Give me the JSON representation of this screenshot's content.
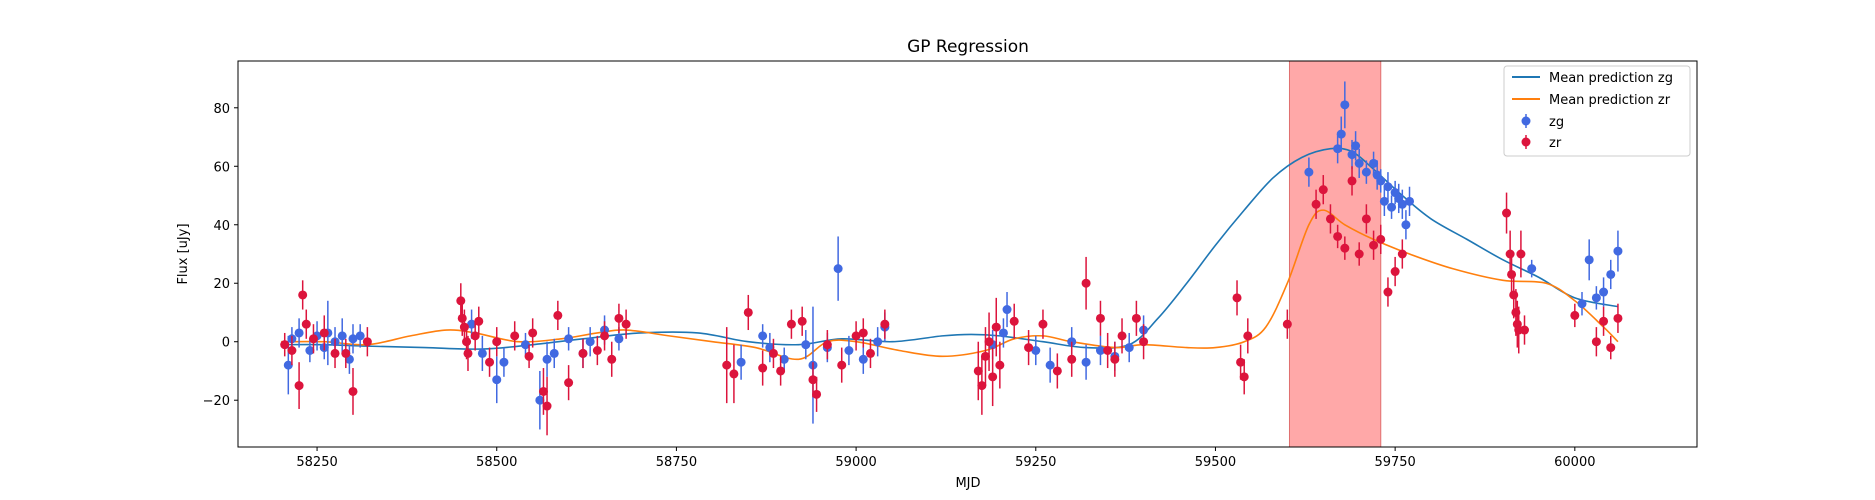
{
  "chart_data": {
    "type": "scatter",
    "title": "GP Regression",
    "xlabel": "MJD",
    "ylabel": "Flux [uJy]",
    "xlim": [
      58140,
      60170
    ],
    "ylim": [
      -36,
      96
    ],
    "xticks": [
      58250,
      58500,
      58750,
      59000,
      59250,
      59500,
      59750,
      60000
    ],
    "yticks": [
      -20,
      0,
      20,
      40,
      60,
      80
    ],
    "grid": false,
    "legend_position": "top-right",
    "shaded_region": {
      "x": [
        59603,
        59730
      ],
      "color": "#ff9999"
    },
    "colors": {
      "zg_line": "#1f77b4",
      "zr_line": "#ff7f0e",
      "zg_points": "#4169e1",
      "zr_points": "#dc143c"
    },
    "lines": [
      {
        "name": "Mean prediction zg",
        "x": [
          58200,
          58260,
          58320,
          58400,
          58480,
          58550,
          58620,
          58700,
          58780,
          58850,
          58920,
          58980,
          59050,
          59120,
          59160,
          59200,
          59260,
          59320,
          59380,
          59420,
          59460,
          59500,
          59540,
          59580,
          59620,
          59660,
          59690,
          59720,
          59760,
          59800,
          59850,
          59900,
          59950,
          60000,
          60060
        ],
        "y": [
          -1,
          -1,
          -1.5,
          -2,
          -2.5,
          -1,
          1,
          3,
          3,
          0,
          -1,
          1,
          0,
          2,
          2.5,
          2,
          0,
          -2,
          -1,
          8,
          20,
          33,
          45,
          56,
          63,
          66,
          65,
          59,
          50,
          42,
          35,
          28,
          22,
          15,
          12
        ]
      },
      {
        "name": "Mean prediction zr",
        "x": [
          58200,
          58260,
          58320,
          58380,
          58430,
          58470,
          58530,
          58590,
          58640,
          58680,
          58740,
          58800,
          58860,
          58920,
          58960,
          59000,
          59060,
          59120,
          59180,
          59220,
          59260,
          59300,
          59360,
          59400,
          59460,
          59500,
          59540,
          59570,
          59600,
          59630,
          59650,
          59680,
          59720,
          59770,
          59830,
          59900,
          59960,
          60000,
          60040,
          60060
        ],
        "y": [
          0,
          0,
          -1,
          2,
          4,
          3,
          0,
          1,
          3,
          4,
          2,
          0,
          -2,
          -6,
          0,
          0,
          -3,
          -5,
          -3,
          1,
          2,
          0,
          -2,
          -1,
          -2,
          -2,
          0,
          5,
          20,
          40,
          45,
          40,
          35,
          30,
          25,
          21,
          20,
          14,
          5,
          0
        ]
      }
    ],
    "series": [
      {
        "name": "zg",
        "points": [
          [
            58210,
            -8,
            10
          ],
          [
            58215,
            1,
            4
          ],
          [
            58225,
            3,
            5
          ],
          [
            58240,
            -3,
            4
          ],
          [
            58250,
            2,
            5
          ],
          [
            58260,
            -2,
            4
          ],
          [
            58265,
            3,
            11
          ],
          [
            58275,
            0,
            5
          ],
          [
            58285,
            2,
            6
          ],
          [
            58295,
            -6,
            5
          ],
          [
            58300,
            1,
            5
          ],
          [
            58310,
            2,
            4
          ],
          [
            58465,
            6,
            5
          ],
          [
            58480,
            -4,
            6
          ],
          [
            58500,
            -13,
            8
          ],
          [
            58510,
            -7,
            5
          ],
          [
            58540,
            -1,
            4
          ],
          [
            58560,
            -20,
            10
          ],
          [
            58570,
            -6,
            6
          ],
          [
            58580,
            -4,
            5
          ],
          [
            58600,
            1,
            4
          ],
          [
            58620,
            -4,
            5
          ],
          [
            58630,
            0,
            5
          ],
          [
            58650,
            4,
            5
          ],
          [
            58670,
            1,
            4
          ],
          [
            58840,
            -7,
            6
          ],
          [
            58870,
            2,
            4
          ],
          [
            58880,
            -2,
            5
          ],
          [
            58900,
            -6,
            4
          ],
          [
            58930,
            -1,
            5
          ],
          [
            58940,
            -8,
            20
          ],
          [
            58960,
            -2,
            5
          ],
          [
            58975,
            25,
            11
          ],
          [
            58990,
            -3,
            5
          ],
          [
            59010,
            -6,
            5
          ],
          [
            59030,
            0,
            5
          ],
          [
            59040,
            5,
            5
          ],
          [
            59190,
            -1,
            5
          ],
          [
            59205,
            3,
            5
          ],
          [
            59210,
            11,
            6
          ],
          [
            59250,
            -3,
            5
          ],
          [
            59270,
            -8,
            6
          ],
          [
            59300,
            0,
            5
          ],
          [
            59320,
            -7,
            6
          ],
          [
            59340,
            -3,
            5
          ],
          [
            59360,
            -5,
            5
          ],
          [
            59380,
            -2,
            5
          ],
          [
            59400,
            4,
            5
          ],
          [
            59630,
            58,
            5
          ],
          [
            59670,
            66,
            5
          ],
          [
            59675,
            71,
            6
          ],
          [
            59680,
            81,
            8
          ],
          [
            59690,
            64,
            5
          ],
          [
            59695,
            67,
            5
          ],
          [
            59700,
            61,
            5
          ],
          [
            59710,
            58,
            4
          ],
          [
            59720,
            61,
            4
          ],
          [
            59725,
            57,
            5
          ],
          [
            59730,
            55,
            4
          ],
          [
            59735,
            48,
            5
          ],
          [
            59740,
            53,
            5
          ],
          [
            59745,
            46,
            4
          ],
          [
            59750,
            51,
            4
          ],
          [
            59755,
            49,
            5
          ],
          [
            59760,
            47,
            5
          ],
          [
            59765,
            40,
            5
          ],
          [
            59770,
            48,
            5
          ],
          [
            59940,
            25,
            3
          ],
          [
            60010,
            13,
            4
          ],
          [
            60020,
            28,
            7
          ],
          [
            60030,
            15,
            4
          ],
          [
            60040,
            17,
            5
          ],
          [
            60050,
            23,
            5
          ],
          [
            60060,
            31,
            7
          ]
        ]
      },
      {
        "name": "zr",
        "points": [
          [
            58205,
            -1,
            4
          ],
          [
            58215,
            -3,
            5
          ],
          [
            58225,
            -15,
            8
          ],
          [
            58230,
            16,
            5
          ],
          [
            58235,
            6,
            5
          ],
          [
            58245,
            1,
            5
          ],
          [
            58260,
            3,
            6
          ],
          [
            58275,
            -4,
            5
          ],
          [
            58290,
            -4,
            5
          ],
          [
            58300,
            -17,
            8
          ],
          [
            58320,
            0,
            5
          ],
          [
            58450,
            14,
            6
          ],
          [
            58452,
            8,
            6
          ],
          [
            58455,
            5,
            6
          ],
          [
            58458,
            0,
            6
          ],
          [
            58460,
            -4,
            6
          ],
          [
            58470,
            2,
            5
          ],
          [
            58475,
            7,
            5
          ],
          [
            58490,
            -7,
            5
          ],
          [
            58500,
            0,
            5
          ],
          [
            58525,
            2,
            5
          ],
          [
            58545,
            -5,
            4
          ],
          [
            58550,
            3,
            5
          ],
          [
            58565,
            -17,
            8
          ],
          [
            58570,
            -22,
            10
          ],
          [
            58585,
            9,
            5
          ],
          [
            58600,
            -14,
            6
          ],
          [
            58620,
            -4,
            5
          ],
          [
            58640,
            -3,
            5
          ],
          [
            58650,
            2,
            5
          ],
          [
            58660,
            -6,
            6
          ],
          [
            58670,
            8,
            5
          ],
          [
            58680,
            6,
            5
          ],
          [
            58820,
            -8,
            13
          ],
          [
            58830,
            -11,
            10
          ],
          [
            58850,
            10,
            6
          ],
          [
            58870,
            -9,
            6
          ],
          [
            58885,
            -4,
            5
          ],
          [
            58895,
            -10,
            5
          ],
          [
            58910,
            6,
            5
          ],
          [
            58925,
            7,
            5
          ],
          [
            58940,
            -13,
            6
          ],
          [
            58945,
            -18,
            6
          ],
          [
            58960,
            -1,
            5
          ],
          [
            58980,
            -8,
            6
          ],
          [
            59000,
            2,
            5
          ],
          [
            59010,
            3,
            5
          ],
          [
            59020,
            -4,
            5
          ],
          [
            59040,
            6,
            5
          ],
          [
            59170,
            -10,
            10
          ],
          [
            59175,
            -15,
            10
          ],
          [
            59180,
            -5,
            10
          ],
          [
            59185,
            0,
            10
          ],
          [
            59190,
            -12,
            10
          ],
          [
            59195,
            5,
            10
          ],
          [
            59200,
            -8,
            8
          ],
          [
            59220,
            7,
            6
          ],
          [
            59240,
            -2,
            6
          ],
          [
            59260,
            6,
            5
          ],
          [
            59280,
            -10,
            6
          ],
          [
            59300,
            -6,
            6
          ],
          [
            59320,
            20,
            9
          ],
          [
            59340,
            8,
            6
          ],
          [
            59350,
            -3,
            6
          ],
          [
            59360,
            -6,
            6
          ],
          [
            59370,
            2,
            6
          ],
          [
            59390,
            8,
            6
          ],
          [
            59400,
            0,
            6
          ],
          [
            59530,
            15,
            6
          ],
          [
            59535,
            -7,
            6
          ],
          [
            59540,
            -12,
            6
          ],
          [
            59545,
            2,
            6
          ],
          [
            59600,
            6,
            5
          ],
          [
            59640,
            47,
            5
          ],
          [
            59650,
            52,
            5
          ],
          [
            59660,
            42,
            5
          ],
          [
            59670,
            36,
            4
          ],
          [
            59680,
            32,
            4
          ],
          [
            59690,
            55,
            5
          ],
          [
            59700,
            30,
            4
          ],
          [
            59710,
            42,
            5
          ],
          [
            59720,
            33,
            5
          ],
          [
            59730,
            35,
            5
          ],
          [
            59740,
            17,
            5
          ],
          [
            59750,
            24,
            5
          ],
          [
            59760,
            30,
            5
          ],
          [
            59905,
            44,
            7
          ],
          [
            59910,
            30,
            8
          ],
          [
            59912,
            23,
            8
          ],
          [
            59915,
            16,
            8
          ],
          [
            59918,
            10,
            8
          ],
          [
            59920,
            6,
            8
          ],
          [
            59922,
            4,
            8
          ],
          [
            59925,
            30,
            8
          ],
          [
            59930,
            4,
            5
          ],
          [
            60000,
            9,
            4
          ],
          [
            60030,
            0,
            5
          ],
          [
            60040,
            7,
            5
          ],
          [
            60050,
            -2,
            4
          ],
          [
            60060,
            8,
            5
          ]
        ]
      }
    ],
    "legend": [
      "Mean prediction zg",
      "Mean prediction zr",
      "zg",
      "zr"
    ]
  }
}
